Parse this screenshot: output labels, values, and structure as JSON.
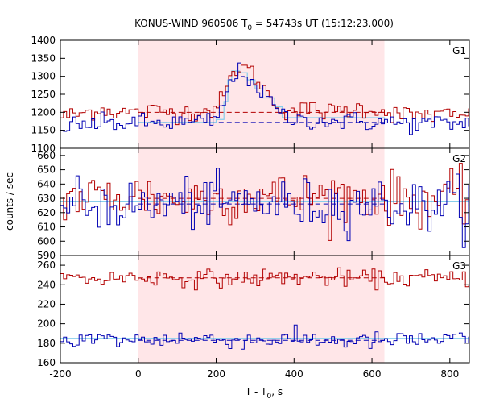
{
  "chart_data": {
    "type": "line",
    "title_main": "KONUS-WIND 960506 T",
    "title_sub": "0",
    "title_rest": " = 54743s UT (15:12:23.000)",
    "xlabel_main": "T - T",
    "xlabel_sub": "0",
    "xlabel_rest": ", s",
    "ylabel": "counts / sec",
    "xlim": [
      -200,
      850
    ],
    "xticks": [
      "-200",
      "0",
      "200",
      "400",
      "600",
      "800"
    ],
    "shaded_interval": [
      0,
      632
    ],
    "colors": {
      "red": "#b30000",
      "blue": "#0000b3",
      "fit": "#87ceeb",
      "shade": "#ffe6e8"
    },
    "panels": [
      {
        "label": "G1",
        "ylim": [
          1100,
          1400
        ],
        "yticks": [
          "1100",
          "1150",
          "1200",
          "1250",
          "1300",
          "1350",
          "1400"
        ],
        "background_levels": {
          "red": 1200,
          "blue": 1172
        },
        "red_series": {
          "name": "",
          "x": [
            -200,
            -150,
            -100,
            -50,
            0,
            50,
            100,
            150,
            200,
            220,
            240,
            260,
            280,
            300,
            320,
            340,
            360,
            380,
            400,
            450,
            500,
            550,
            600,
            632,
            700,
            750,
            800,
            850
          ],
          "y": [
            1188,
            1195,
            1210,
            1200,
            1198,
            1205,
            1200,
            1200,
            1210,
            1245,
            1300,
            1330,
            1320,
            1300,
            1270,
            1240,
            1215,
            1205,
            1205,
            1208,
            1200,
            1210,
            1210,
            1202,
            1190,
            1195,
            1190,
            1188
          ]
        },
        "blue_series": {
          "name": "",
          "x": [
            -200,
            -150,
            -100,
            -50,
            0,
            50,
            100,
            150,
            200,
            220,
            240,
            260,
            280,
            300,
            320,
            340,
            360,
            380,
            400,
            450,
            500,
            550,
            600,
            632,
            700,
            750,
            800,
            850
          ],
          "y": [
            1162,
            1165,
            1168,
            1170,
            1170,
            1170,
            1172,
            1170,
            1178,
            1225,
            1290,
            1312,
            1300,
            1280,
            1252,
            1230,
            1200,
            1185,
            1180,
            1178,
            1175,
            1175,
            1172,
            1172,
            1168,
            1168,
            1168,
            1170
          ]
        },
        "fit_steps": {
          "x": [
            0,
            190,
            200,
            220,
            230,
            240,
            250,
            260,
            280,
            300,
            320,
            350,
            370,
            632
          ],
          "y": [
            1172,
            1172,
            1180,
            1230,
            1290,
            1315,
            1315,
            1310,
            1290,
            1265,
            1240,
            1215,
            1185,
            1172
          ]
        }
      },
      {
        "label": "G2",
        "ylim": [
          590,
          665
        ],
        "yticks": [
          "590",
          "600",
          "610",
          "620",
          "630",
          "640",
          "650",
          "660"
        ],
        "background_levels": {
          "red": 630,
          "blue": 626
        },
        "red_series": {
          "name": "",
          "x": [
            -200,
            -100,
            0,
            100,
            200,
            300,
            400,
            500,
            600,
            700,
            800,
            850
          ],
          "y": [
            630,
            631,
            632,
            629,
            630,
            633,
            630,
            632,
            631,
            629,
            630,
            630
          ]
        },
        "blue_series": {
          "name": "",
          "x": [
            -200,
            -100,
            0,
            100,
            200,
            300,
            400,
            500,
            600,
            700,
            800,
            850
          ],
          "y": [
            625,
            626,
            624,
            627,
            626,
            628,
            625,
            626,
            627,
            624,
            626,
            626
          ]
        },
        "fit_steps": {
          "x": [
            -200,
            850
          ],
          "y": [
            628,
            628
          ]
        }
      },
      {
        "label": "G3",
        "ylim": [
          160,
          270
        ],
        "yticks": [
          "160",
          "180",
          "200",
          "220",
          "240",
          "260"
        ],
        "background_levels": {
          "red": 247,
          "blue": 183
        },
        "red_series": {
          "name": "",
          "x": [
            -200,
            -100,
            0,
            100,
            200,
            300,
            400,
            500,
            600,
            700,
            800,
            850
          ],
          "y": [
            247,
            246,
            248,
            247,
            246,
            247,
            248,
            247,
            246,
            247,
            246,
            247
          ]
        },
        "blue_series": {
          "name": "",
          "x": [
            -200,
            -100,
            0,
            100,
            200,
            300,
            400,
            500,
            600,
            700,
            800,
            850
          ],
          "y": [
            183,
            184,
            183,
            185,
            184,
            183,
            184,
            183,
            182,
            183,
            184,
            183
          ]
        },
        "fit_steps": {
          "x": [
            -200,
            850
          ],
          "y": [
            185,
            185
          ]
        }
      }
    ]
  }
}
